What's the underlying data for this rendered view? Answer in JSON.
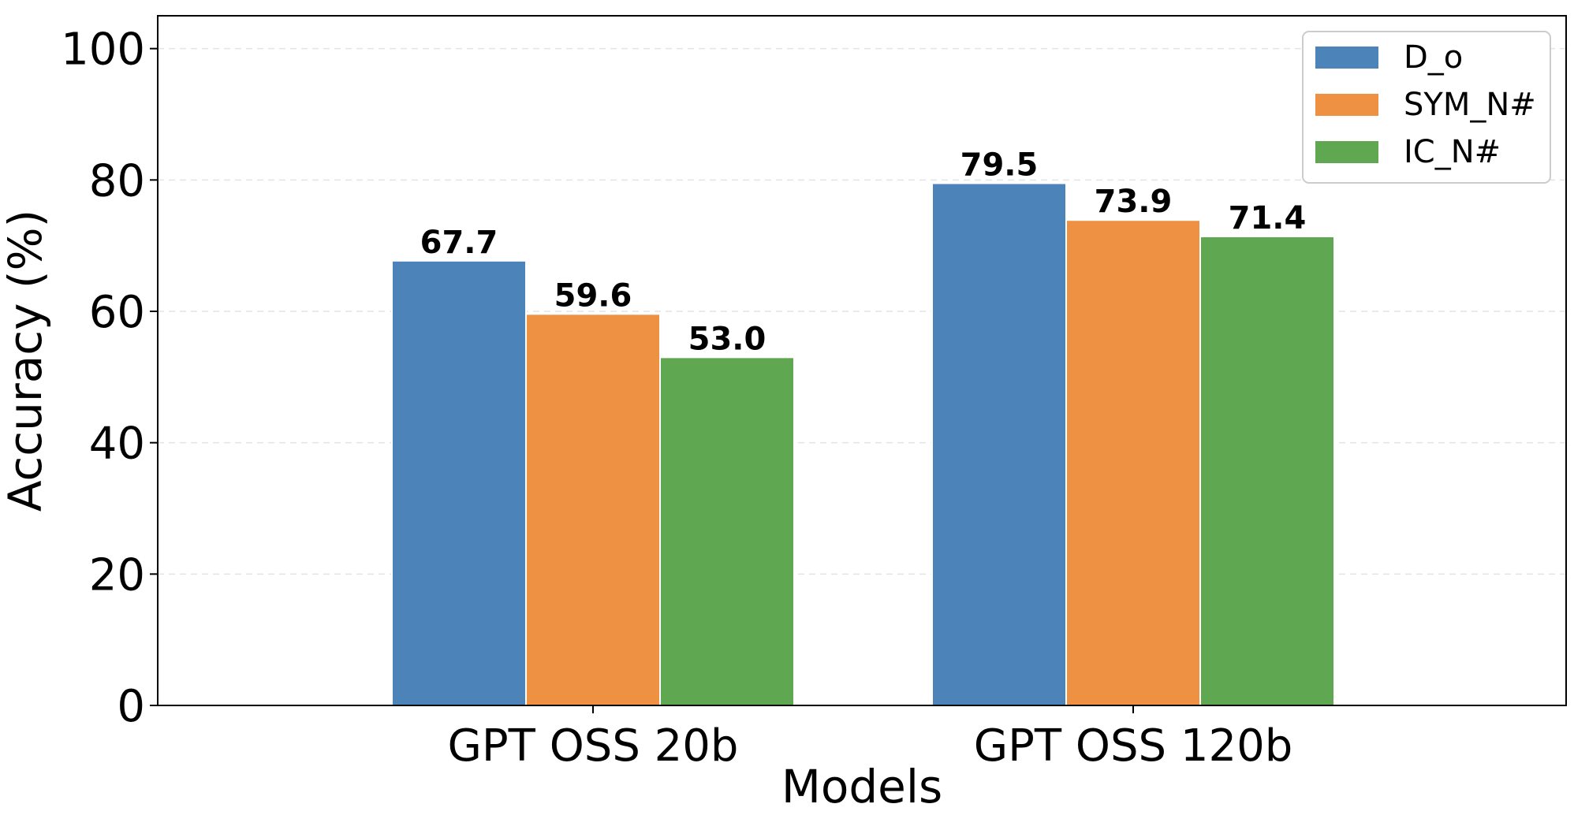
{
  "chart_data": {
    "type": "bar",
    "title": "",
    "xlabel": "Models",
    "ylabel": "Accuracy (%)",
    "categories": [
      "GPT OSS 20b",
      "GPT OSS 120b"
    ],
    "series": [
      {
        "name": "D_o",
        "values": [
          67.7,
          79.5
        ],
        "color": "#4c83b8"
      },
      {
        "name": "SYM_N#",
        "values": [
          59.6,
          73.9
        ],
        "color": "#ef9143"
      },
      {
        "name": "IC_N#",
        "values": [
          53.0,
          71.4
        ],
        "color": "#5fa751"
      }
    ],
    "ylim": [
      0,
      105
    ],
    "yticks": [
      0,
      20,
      40,
      60,
      80,
      100
    ],
    "grid": true,
    "legend": "top-right"
  }
}
